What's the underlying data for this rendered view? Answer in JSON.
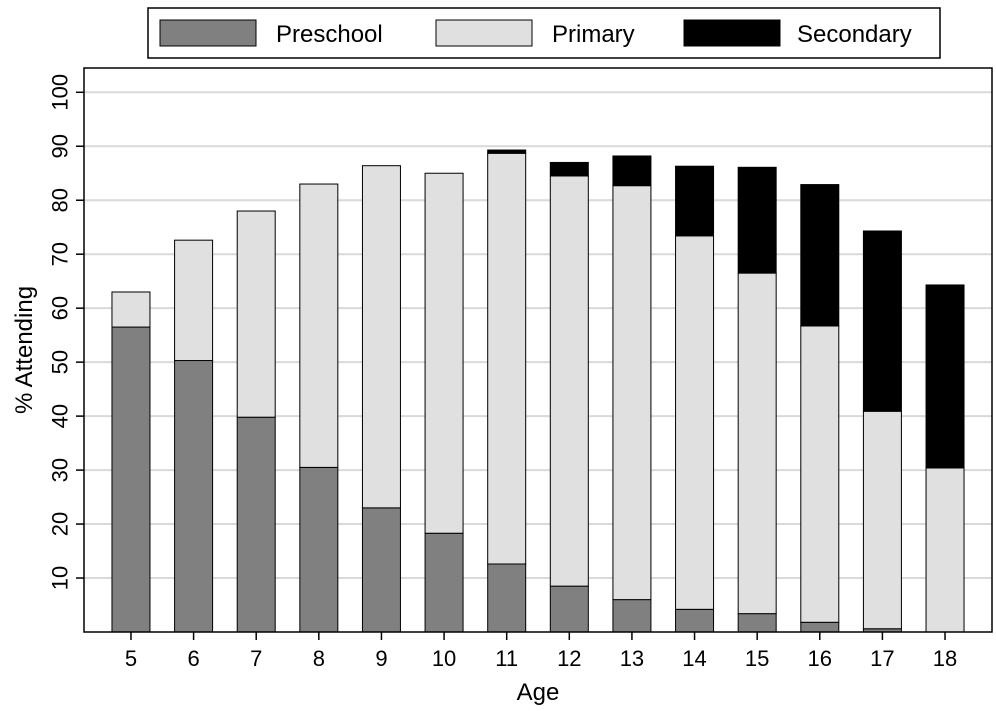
{
  "chart_data": {
    "type": "bar",
    "stacked": true,
    "categories": [
      "5",
      "6",
      "7",
      "8",
      "9",
      "10",
      "11",
      "12",
      "13",
      "14",
      "15",
      "16",
      "17",
      "18"
    ],
    "series": [
      {
        "name": "Preschool",
        "color": "#808080",
        "values": [
          56.5,
          50.3,
          39.8,
          30.5,
          23.0,
          18.3,
          12.6,
          8.5,
          6.0,
          4.2,
          3.4,
          1.8,
          0.6,
          0.0
        ]
      },
      {
        "name": "Primary",
        "color": "#e0e0e0",
        "values": [
          6.5,
          22.3,
          38.2,
          52.5,
          63.4,
          66.7,
          76.1,
          76.0,
          76.7,
          69.2,
          63.1,
          54.9,
          40.3,
          30.4
        ]
      },
      {
        "name": "Secondary",
        "color": "#000000",
        "values": [
          0.0,
          0.0,
          0.0,
          0.0,
          0.0,
          0.0,
          0.6,
          2.5,
          5.5,
          12.9,
          19.6,
          26.2,
          33.4,
          33.9
        ]
      }
    ],
    "xlabel": "Age",
    "ylabel": "% Attending",
    "yticks": [
      10,
      20,
      30,
      40,
      50,
      60,
      70,
      80,
      90,
      100
    ],
    "ylim": [
      0,
      100
    ],
    "grid": true,
    "legend_position": "top"
  }
}
